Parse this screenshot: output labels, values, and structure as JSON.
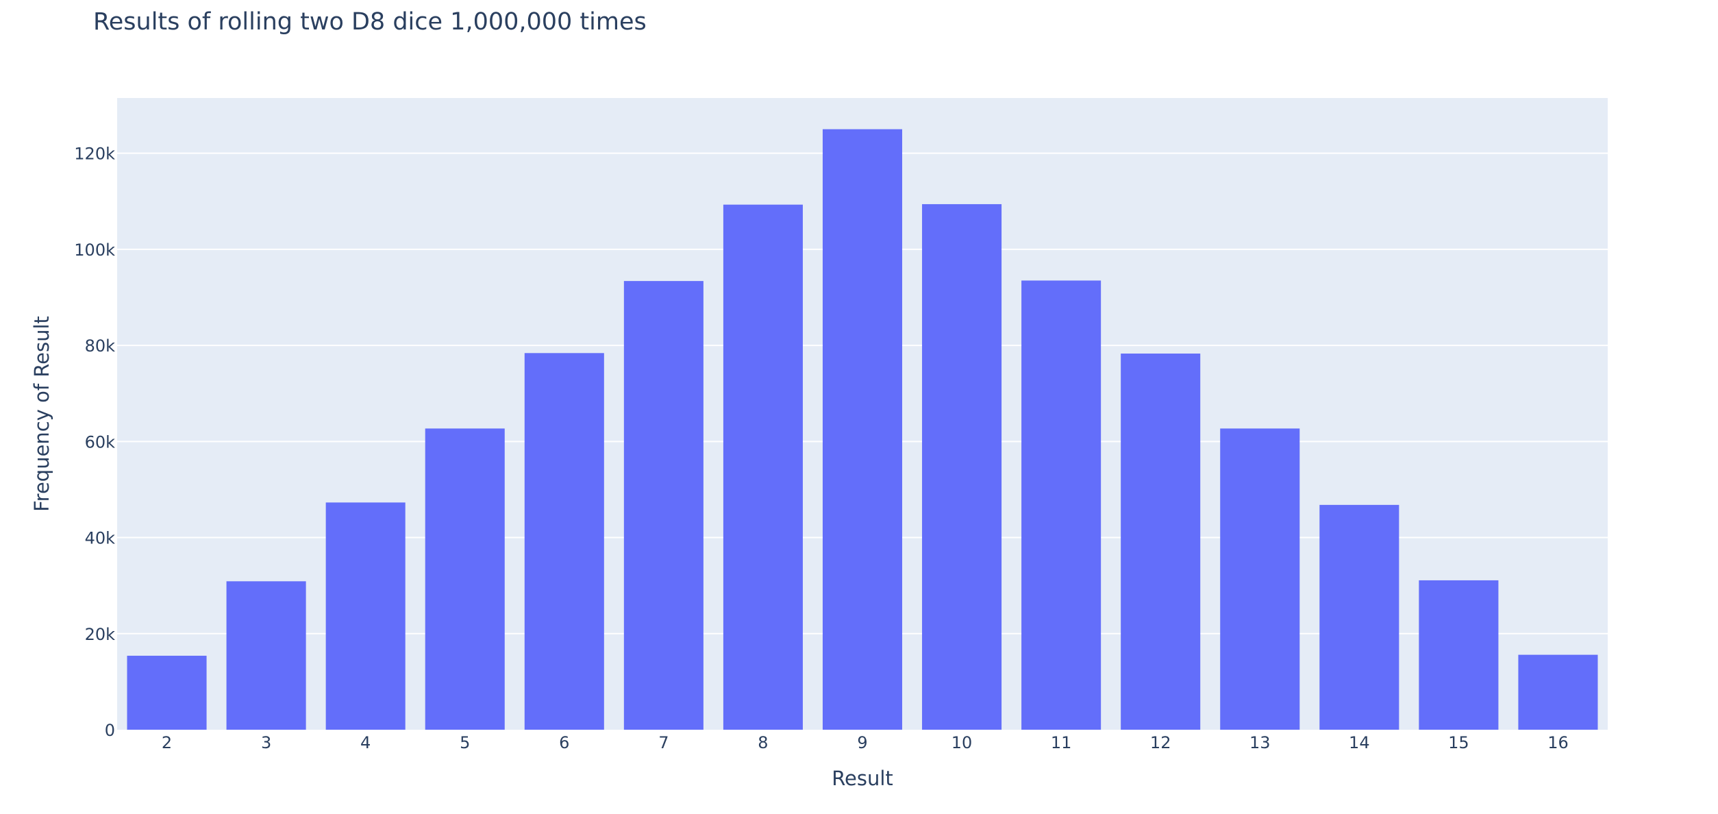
{
  "chart_data": {
    "type": "bar",
    "title": "Results of rolling two D8 dice 1,000,000 times",
    "xlabel": "Result",
    "ylabel": "Frequency of Result",
    "categories": [
      "2",
      "3",
      "4",
      "5",
      "6",
      "7",
      "8",
      "9",
      "10",
      "11",
      "12",
      "13",
      "14",
      "15",
      "16"
    ],
    "values": [
      15400,
      30900,
      47300,
      62700,
      78400,
      93400,
      109300,
      125000,
      109400,
      93500,
      78300,
      62700,
      46800,
      31100,
      15600
    ],
    "ylim": [
      0,
      131500
    ],
    "yticks": [
      0,
      20000,
      40000,
      60000,
      80000,
      100000,
      120000
    ],
    "ytick_labels": [
      "0",
      "20k",
      "40k",
      "60k",
      "80k",
      "100k",
      "120k"
    ],
    "grid": true,
    "legend": "none",
    "colors": {
      "bar": "#636efa",
      "plot_background": "#e5ecf6",
      "grid": "#ffffff",
      "text": "#2a3f5f"
    }
  }
}
